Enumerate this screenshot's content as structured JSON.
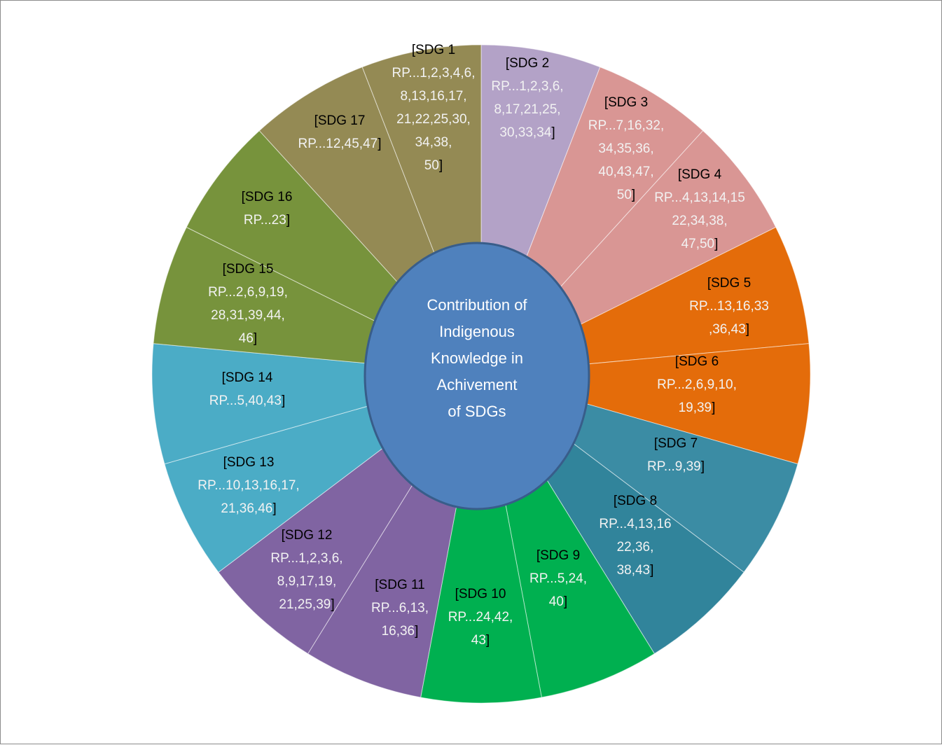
{
  "chart_data": {
    "type": "pie",
    "subtype": "doughnut",
    "center_label": [
      "Contribution of",
      "Indigenous",
      "Knowledge in",
      "Achivement",
      "of SDGs"
    ],
    "categories": [
      "SDG 1",
      "SDG 2",
      "SDG 3",
      "SDG 4",
      "SDG 5",
      "SDG 6",
      "SDG 7",
      "SDG 8",
      "SDG 9",
      "SDG 10",
      "SDG 11",
      "SDG 12",
      "SDG 13",
      "SDG 14",
      "SDG 15",
      "SDG 16",
      "SDG 17"
    ],
    "values": [
      1,
      1,
      1,
      1,
      1,
      1,
      1,
      1,
      1,
      1,
      1,
      1,
      1,
      1,
      1,
      1,
      1
    ],
    "slices": [
      {
        "name": "SDG 1",
        "color": "#b3a2c7",
        "lines": [
          "[SDG 1",
          "RP...1,2,3,4,6,",
          "8,13,16,17,",
          "21,22,25,30,",
          "34,38,",
          "50]"
        ]
      },
      {
        "name": "SDG 2",
        "color": "#d99694",
        "lines": [
          "[SDG 2",
          "RP...1,2,3,6,",
          "8,17,21,25,",
          "30,33,34]"
        ]
      },
      {
        "name": "SDG 3",
        "color": "#d99694",
        "lines": [
          "[SDG 3",
          "RP...7,16,32,",
          "34,35,36,",
          "40,43,47,",
          "50]"
        ]
      },
      {
        "name": "SDG 4",
        "color": "#e46c0a",
        "lines": [
          "[SDG 4",
          "RP...4,13,14,15",
          "22,34,38,",
          "47,50]"
        ]
      },
      {
        "name": "SDG 5",
        "color": "#e46c0a",
        "lines": [
          "[SDG 5",
          "RP...13,16,33",
          ",36,43]"
        ]
      },
      {
        "name": "SDG 6",
        "color": "#3b8ca4",
        "lines": [
          "[SDG 6",
          "RP...2,6,9,10,",
          "19,39]"
        ]
      },
      {
        "name": "SDG 7",
        "color": "#31849b",
        "lines": [
          "[SDG 7",
          "RP...9,39]"
        ]
      },
      {
        "name": "SDG 8",
        "color": "#00b050",
        "lines": [
          "[SDG 8",
          "RP...4,13,16",
          "22,36,",
          "38,43]"
        ]
      },
      {
        "name": "SDG 9",
        "color": "#00b050",
        "lines": [
          "[SDG 9",
          "RP...5,24,",
          "40]"
        ]
      },
      {
        "name": "SDG 10",
        "color": "#8064a2",
        "lines": [
          "[SDG 10",
          "RP...24,42,",
          "43]"
        ]
      },
      {
        "name": "SDG 11",
        "color": "#8064a2",
        "lines": [
          "[SDG 11",
          "RP...6,13,",
          "16,36]"
        ]
      },
      {
        "name": "SDG 12",
        "color": "#4bacc6",
        "lines": [
          "[SDG 12",
          "RP...1,2,3,6,",
          "8,9,17,19,",
          "21,25,39]"
        ]
      },
      {
        "name": "SDG 13",
        "color": "#4bacc6",
        "lines": [
          "[SDG 13",
          "RP...10,13,16,17,",
          "21,36,46]"
        ]
      },
      {
        "name": "SDG 14",
        "color": "#77933c",
        "lines": [
          "[SDG 14",
          "RP...5,40,43]"
        ]
      },
      {
        "name": "SDG 15",
        "color": "#77933c",
        "lines": [
          "[SDG 15",
          "RP...2,6,9,19,",
          "28,31,39,44,",
          "46]"
        ]
      },
      {
        "name": "SDG 16",
        "color": "#948a54",
        "lines": [
          "[SDG 16",
          "RP...23]"
        ]
      },
      {
        "name": "SDG 17",
        "color": "#948a54",
        "lines": [
          "[SDG 17",
          "RP...12,45,47]"
        ]
      }
    ],
    "hole_color": "#4f81bd",
    "hole_border_color": "#385d8a",
    "legend": "none"
  }
}
